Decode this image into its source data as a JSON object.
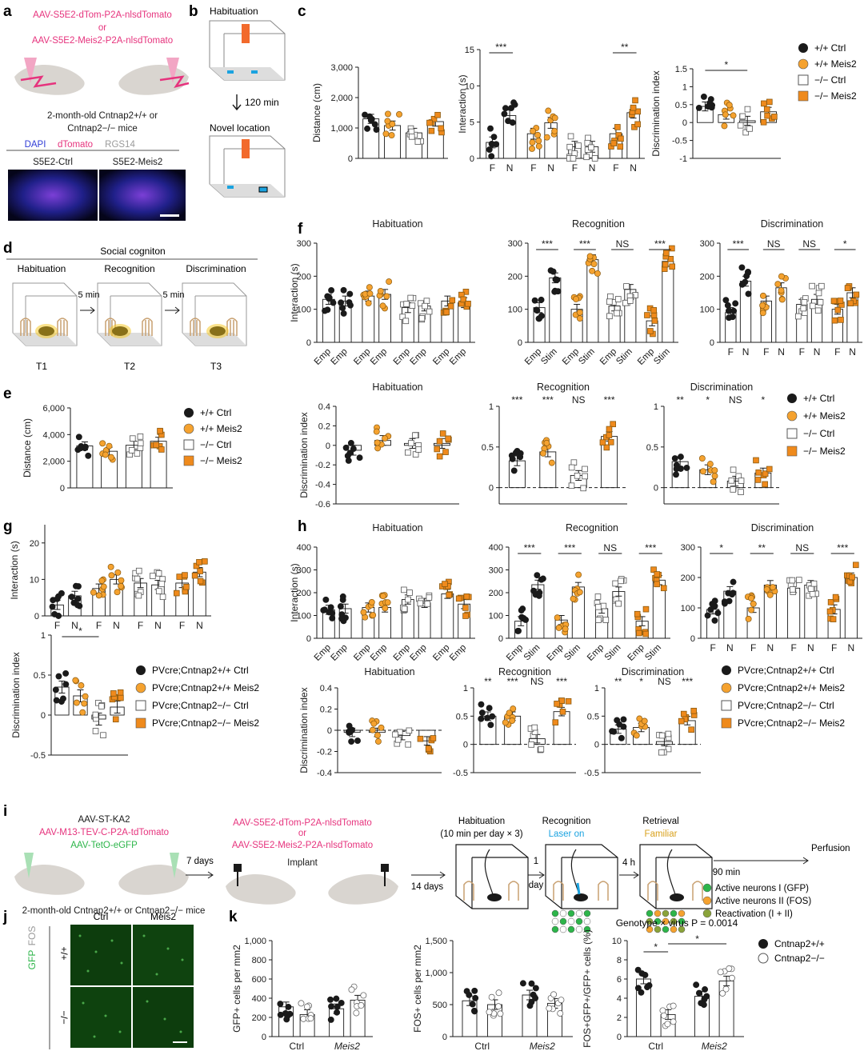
{
  "colors": {
    "black": "#1a1a1a",
    "orange": "#f5a22f",
    "orange_sq": "#ef8a1c",
    "pink": "#e6337d",
    "green": "#2db54a",
    "blue": "#2f3bd6",
    "cyan": "#1ba3e0",
    "gold": "#d9a21e",
    "grey": "#9a9a9a"
  },
  "panel_labels": [
    "a",
    "b",
    "c",
    "d",
    "e",
    "f",
    "g",
    "h",
    "i",
    "j",
    "k"
  ],
  "panel_a": {
    "virus1": "AAV-S5E2-dTom-P2A-nlsdTomato",
    "or": "or",
    "virus2": "AAV-S5E2-Meis2-P2A-nlsdTomato",
    "mice_line1": "2-month-old Cntnap2+/+ or",
    "mice_line2": "Cntnap2−/− mice",
    "stain": [
      "DAPI",
      "dTomato",
      "RGS14"
    ],
    "img_ctrl": "S5E2-Ctrl",
    "img_meis2": "S5E2-Meis2"
  },
  "panel_b": {
    "hab": "Habituation",
    "delay": "120 min",
    "novel": "Novel location"
  },
  "panel_d": {
    "title": "Social cogniton",
    "steps": [
      "Habituation",
      "Recognition",
      "Discrimination"
    ],
    "delay": "5 min",
    "trials": [
      "T1",
      "T2",
      "T3"
    ]
  },
  "legend_e": [
    "+/+ Ctrl",
    "+/+ Meis2",
    "−/− Ctrl",
    "−/− Meis2"
  ],
  "legend_pv": [
    "PVcre;Cntnap2+/+ Ctrl",
    "PVcre;Cntnap2+/+ Meis2",
    "PVcre;Cntnap2−/− Ctrl",
    "PVcre;Cntnap2−/− Meis2"
  ],
  "panel_i": {
    "left_viruses": [
      "AAV-ST-KA2",
      "AAV-M13-TEV-C-P2A-tdTomato",
      "AAV-TetO-eGFP"
    ],
    "left_mice": "2-month-old Cntnap2+/+ or Cntnap2−/− mice",
    "days7": "7 days",
    "mid_viruses": [
      "AAV-S5E2-dTom-P2A-nlsdTomato",
      "or",
      "AAV-S5E2-Meis2-P2A-nlsdTomato"
    ],
    "implant": "Implant",
    "days14": "14 days",
    "hab": "Habituation",
    "hab_sub": "(10 min per day × 3)",
    "rec": "Recognition",
    "laser": "Laser on",
    "ret": "Retrieval",
    "familiar": "Familiar",
    "day1": "1 day",
    "h4": "4 h",
    "min90": "90 min",
    "perfusion": "Perfusion",
    "legend": [
      "Active neurons I (GFP)",
      "Active neurons II (FOS)",
      "Reactivation (I + II)"
    ]
  },
  "panel_j": {
    "cols": [
      "Ctrl",
      "Meis2"
    ],
    "rows": [
      "+/+",
      "−/−"
    ],
    "side": [
      "GFP",
      "FOS"
    ]
  },
  "panel_k": {
    "stat": "Genotype × virus P = 0.0014",
    "legend": [
      "Cntnap2+/+",
      "Cntnap2−/−"
    ]
  },
  "chart_data": [
    {
      "id": "c1",
      "type": "bar",
      "ylabel": "Distance (cm)",
      "ylim": [
        0,
        3000
      ],
      "ticks": [
        0,
        1000,
        2000,
        3000
      ],
      "tick_labels": [
        "0",
        "1,000",
        "2,000",
        "3,000"
      ],
      "groups": [
        "+/+ Ctrl",
        "+/+ Meis2",
        "−/− Ctrl",
        "−/− Meis2"
      ],
      "means": [
        1300,
        1080,
        840,
        1210
      ]
    },
    {
      "id": "c2",
      "type": "bar",
      "ylabel": "Interaction (s)",
      "ylim": [
        0,
        15
      ],
      "ticks": [
        0,
        5,
        10,
        15
      ],
      "categories": [
        "F",
        "N",
        "F",
        "N",
        "F",
        "N",
        "F",
        "N"
      ],
      "means": [
        2.2,
        5.9,
        3.4,
        4.9,
        1.6,
        1.6,
        3.4,
        6.3
      ],
      "significance": [
        "***",
        "**"
      ]
    },
    {
      "id": "c3",
      "type": "bar",
      "ylabel": "Discrimination index",
      "ylim": [
        -1.0,
        1.5
      ],
      "ticks": [
        -1.0,
        -0.5,
        0,
        0.5,
        1.0,
        1.5
      ],
      "means": [
        0.45,
        0.22,
        0.05,
        0.3
      ],
      "significance": [
        "*"
      ]
    },
    {
      "id": "e",
      "type": "bar",
      "ylabel": "Distance (cm)",
      "ylim": [
        0,
        6000
      ],
      "ticks": [
        0,
        2000,
        4000,
        6000
      ],
      "tick_labels": [
        "0",
        "2,000",
        "4,000",
        "6,000"
      ],
      "means": [
        3150,
        2750,
        3200,
        3500
      ]
    },
    {
      "id": "f1",
      "title": "Habituation",
      "type": "bar",
      "ylabel": "Interaction (s)",
      "ylim": [
        0,
        300
      ],
      "ticks": [
        0,
        100,
        200,
        300
      ],
      "categories": [
        "Emp",
        "Emp",
        "Emp",
        "Emp",
        "Emp",
        "Emp",
        "Emp",
        "Emp"
      ],
      "means": [
        130,
        125,
        140,
        145,
        105,
        110,
        125,
        120
      ]
    },
    {
      "id": "f2",
      "title": "Recognition",
      "type": "bar",
      "ylim": [
        0,
        300
      ],
      "ticks": [
        0,
        100,
        200,
        300
      ],
      "categories": [
        "Emp",
        "Stim",
        "Emp",
        "Stim",
        "Emp",
        "Stim",
        "Emp",
        "Stim"
      ],
      "means": [
        105,
        195,
        100,
        250,
        110,
        160,
        65,
        245
      ],
      "significance": [
        "***",
        "***",
        "NS",
        "***"
      ]
    },
    {
      "id": "f3",
      "title": "Discrimination",
      "type": "bar",
      "ylim": [
        0,
        300
      ],
      "ticks": [
        0,
        100,
        200,
        300
      ],
      "categories": [
        "F",
        "N",
        "F",
        "N",
        "F",
        "N",
        "F",
        "N"
      ],
      "means": [
        90,
        185,
        125,
        165,
        115,
        130,
        100,
        150
      ],
      "significance": [
        "***",
        "NS",
        "NS",
        "*"
      ]
    },
    {
      "id": "f4",
      "title": "Habituation",
      "type": "bar",
      "ylabel": "Discrimination index",
      "ylim": [
        -0.6,
        0.4
      ],
      "ticks": [
        -0.6,
        -0.4,
        -0.2,
        0,
        0.2,
        0.4
      ],
      "means": [
        -0.05,
        0.05,
        0.02,
        0.02
      ]
    },
    {
      "id": "f5",
      "title": "Recognition",
      "type": "bar",
      "ylim": [
        -0.2,
        1.0
      ],
      "ticks": [
        0,
        0.5,
        1.0
      ],
      "means": [
        0.33,
        0.44,
        0.15,
        0.63
      ],
      "significance": [
        "***",
        "***",
        "NS",
        "***"
      ]
    },
    {
      "id": "f6",
      "title": "Discrimination",
      "type": "bar",
      "ylim": [
        -0.2,
        1.0
      ],
      "ticks": [
        0,
        0.5,
        1.0
      ],
      "means": [
        0.32,
        0.22,
        0.08,
        0.18
      ],
      "significance": [
        "**",
        "*",
        "NS",
        "*"
      ]
    },
    {
      "id": "g1",
      "type": "bar",
      "ylabel": "Interaction (s)",
      "ylim": [
        0,
        25
      ],
      "ticks": [
        0,
        10,
        20
      ],
      "categories": [
        "F",
        "N",
        "F",
        "N",
        "F",
        "N",
        "F",
        "N"
      ],
      "means": [
        3,
        5.5,
        7.5,
        10,
        9,
        8.5,
        9,
        12
      ]
    },
    {
      "id": "g2",
      "type": "bar",
      "ylabel": "Discrimination index",
      "ylim": [
        -0.5,
        1.0
      ],
      "ticks": [
        -0.5,
        0,
        0.5,
        1.0
      ],
      "means": [
        0.35,
        0.24,
        -0.05,
        0.1
      ],
      "significance": [
        "*"
      ]
    },
    {
      "id": "h1",
      "title": "Habituation",
      "type": "bar",
      "ylabel": "Interaction (s)",
      "ylim": [
        0,
        400
      ],
      "ticks": [
        0,
        100,
        200,
        300,
        400
      ],
      "categories": [
        "Emp",
        "Emp",
        "Emp",
        "Emp",
        "Emp",
        "Emp",
        "Emp",
        "Emp"
      ],
      "means": [
        125,
        130,
        135,
        135,
        170,
        155,
        195,
        150
      ]
    },
    {
      "id": "h2",
      "title": "Recognition",
      "type": "bar",
      "ylim": [
        0,
        400
      ],
      "ticks": [
        0,
        100,
        200,
        300,
        400
      ],
      "categories": [
        "Emp",
        "Stim",
        "Emp",
        "Stim",
        "Emp",
        "Stim",
        "Emp",
        "Stim"
      ],
      "means": [
        75,
        235,
        80,
        225,
        130,
        205,
        75,
        255
      ],
      "significance": [
        "***",
        "***",
        "NS",
        "***"
      ]
    },
    {
      "id": "h3",
      "title": "Discrimination",
      "type": "bar",
      "ylim": [
        0,
        300
      ],
      "ticks": [
        0,
        100,
        200,
        300
      ],
      "categories": [
        "F",
        "N",
        "F",
        "N",
        "F",
        "N",
        "F",
        "N"
      ],
      "means": [
        95,
        155,
        100,
        175,
        165,
        175,
        95,
        200
      ],
      "significance": [
        "*",
        "**",
        "NS",
        "***"
      ]
    },
    {
      "id": "h4",
      "title": "Habituation",
      "type": "bar",
      "ylabel": "Discrimination index",
      "ylim": [
        -0.4,
        0.4
      ],
      "ticks": [
        -0.4,
        -0.2,
        0,
        0.2,
        0.4
      ],
      "means": [
        -0.02,
        -0.02,
        -0.05,
        -0.1
      ]
    },
    {
      "id": "h5",
      "title": "Recognition",
      "type": "bar",
      "ylim": [
        -0.5,
        1.0
      ],
      "ticks": [
        -0.5,
        0,
        0.5,
        1.0
      ],
      "means": [
        0.5,
        0.5,
        0.1,
        0.58
      ],
      "significance": [
        "**",
        "***",
        "NS",
        "***"
      ]
    },
    {
      "id": "h6",
      "title": "Discrimination",
      "type": "bar",
      "ylim": [
        -0.5,
        1.0
      ],
      "ticks": [
        -0.5,
        0,
        0.5,
        1.0
      ],
      "means": [
        0.27,
        0.3,
        0.05,
        0.42
      ],
      "significance": [
        "**",
        "*",
        "NS",
        "***"
      ]
    },
    {
      "id": "k1",
      "type": "bar",
      "ylabel": "GFP+ cells per mm2",
      "ylim": [
        0,
        1000
      ],
      "ticks": [
        0,
        200,
        400,
        600,
        800,
        1000
      ],
      "tick_labels": [
        "0",
        "200",
        "400",
        "600",
        "800",
        "1,000"
      ],
      "categories": [
        "Ctrl",
        "Meis2"
      ],
      "means": [
        310,
        230,
        290,
        380
      ]
    },
    {
      "id": "k2",
      "type": "bar",
      "ylabel": "FOS+ cells per mm2",
      "ylim": [
        0,
        1500
      ],
      "ticks": [
        0,
        500,
        1000,
        1500
      ],
      "tick_labels": [
        "0",
        "500",
        "1,000",
        "1,500"
      ],
      "categories": [
        "Ctrl",
        "Meis2"
      ],
      "means": [
        560,
        500,
        650,
        520
      ]
    },
    {
      "id": "k3",
      "type": "bar",
      "ylabel": "FOS+GFP+/GFP+ cells (%)",
      "ylim": [
        0,
        10
      ],
      "ticks": [
        0,
        2,
        4,
        6,
        8,
        10
      ],
      "categories": [
        "Ctrl",
        "Meis2"
      ],
      "means": [
        6.0,
        2.3,
        4.2,
        5.8
      ],
      "significance": [
        "*",
        "*"
      ]
    }
  ]
}
